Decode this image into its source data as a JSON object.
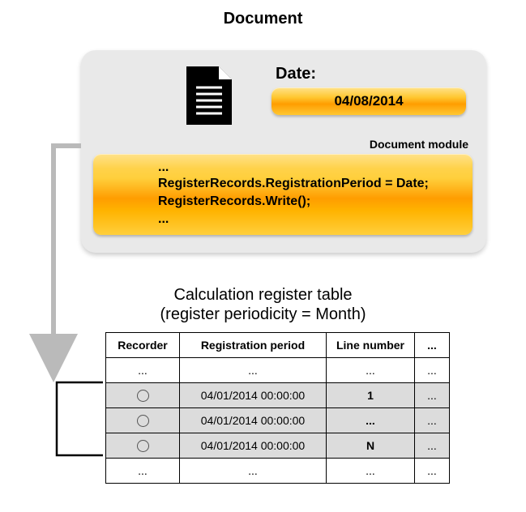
{
  "title": "Document",
  "card": {
    "date_label": "Date:",
    "date_value": "04/08/2014",
    "module_label": "Document module",
    "code_lines": [
      "...",
      "RegisterRecords.RegistrationPeriod = Date;",
      "RegisterRecords.Write();",
      "..."
    ]
  },
  "table": {
    "title_line1": "Calculation register table",
    "title_line2": "(register periodicity = Month)",
    "headers": [
      "Recorder",
      "Registration period",
      "Line number",
      "..."
    ],
    "rows": [
      {
        "recorder": "...",
        "period": "...",
        "line": "...",
        "rest": "...",
        "shaded": false,
        "circle": false
      },
      {
        "recorder": "",
        "period": "04/01/2014 00:00:00",
        "line": "1",
        "rest": "...",
        "shaded": true,
        "circle": true
      },
      {
        "recorder": "",
        "period": "04/01/2014 00:00:00",
        "line": "...",
        "rest": "...",
        "shaded": true,
        "circle": true
      },
      {
        "recorder": "",
        "period": "04/01/2014 00:00:00",
        "line": "N",
        "rest": "...",
        "shaded": true,
        "circle": true
      },
      {
        "recorder": "...",
        "period": "...",
        "line": "...",
        "rest": "...",
        "shaded": false,
        "circle": false
      }
    ]
  },
  "styling": {
    "card_bg": "#e9e9e9",
    "gradient_stops": [
      "#ffe28a",
      "#ffc832",
      "#ff9d00",
      "#ffc832"
    ],
    "table_border": "#000000",
    "shaded_row_bg": "#dcdcdc",
    "arrow_color": "#bababa",
    "bracket_color": "#000000",
    "fonts": {
      "title_size": 20,
      "body_size": 16,
      "table_size": 14
    }
  }
}
